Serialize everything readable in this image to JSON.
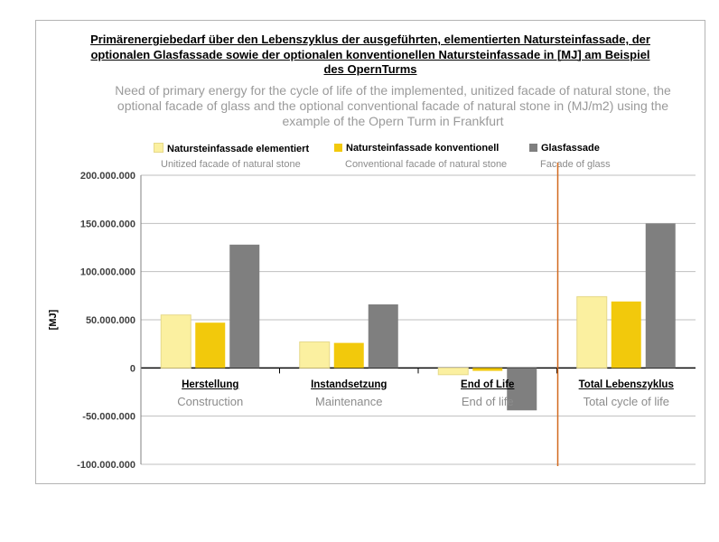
{
  "title_de": "Primärenergiebedarf über den Lebenszyklus der ausgeführten, elementierten Natursteinfassade, der optionalen Glasfassade sowie der optionalen konventionellen Natursteinfassade in [MJ] am Beispiel des OpernTurms",
  "title_en": "Need of primary energy for the cycle of life of the implemented, unitized facade of natural stone, the optional facade of glass and the optional conventional facade of natural stone in (MJ/m2) using the example of the Opern Turm in Frankfurt",
  "legend": [
    {
      "label": "Natursteinfassade elementiert",
      "sub": "Unitized facade of natural stone",
      "color": "#fbf0a0"
    },
    {
      "label": "Natursteinfassade konventionell",
      "sub": "Conventional facade of natural stone",
      "color": "#f2c90c"
    },
    {
      "label": "Glasfassade",
      "sub": "Facade of glass",
      "color": "#7f7f7f"
    }
  ],
  "chart_data": {
    "type": "bar",
    "categories": [
      "Herstellung",
      "Instandsetzung",
      "End of Life",
      "Total Lebenszyklus"
    ],
    "categories_en": [
      "Construction",
      "Maintenance",
      "End of life",
      "Total cycle of life"
    ],
    "ylabel": "[MJ]",
    "ylim": [
      -100000000,
      200000000
    ],
    "yticks": [
      200000000,
      150000000,
      100000000,
      50000000,
      0,
      -50000000,
      -100000000
    ],
    "ytick_labels": [
      "200.000.000",
      "150.000.000",
      "100.000.000",
      "50.000.000",
      "0",
      "-50.000.000",
      "-100.000.000"
    ],
    "grid": true,
    "series": [
      {
        "name": "Natursteinfassade elementiert",
        "values": [
          55000000,
          27000000,
          -7000000,
          74000000
        ]
      },
      {
        "name": "Natursteinfassade konventionell",
        "values": [
          47000000,
          26000000,
          -3000000,
          69000000
        ]
      },
      {
        "name": "Glasfassade",
        "values": [
          128000000,
          66000000,
          -44000000,
          150000000
        ]
      }
    ],
    "colors": [
      "#fbf0a0",
      "#f2c90c",
      "#7f7f7f"
    ],
    "separator_color": "#d2691e"
  }
}
